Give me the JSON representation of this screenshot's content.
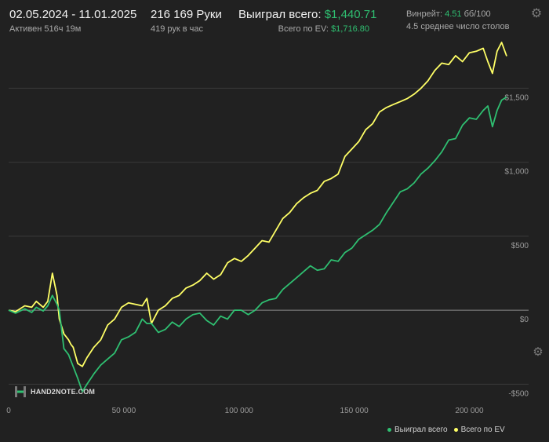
{
  "header": {
    "date_range": "02.05.2024 - 11.01.2025",
    "active": "Активен 516ч 19м",
    "hands": "216 169 Руки",
    "hands_per_hour": "419 рук в час",
    "won_label": "Выиграл всего:",
    "won_value": "$1,440.71",
    "ev_label": "Всего по EV:",
    "ev_value": "$1,716.80",
    "winrate_label": "Винрейт:",
    "winrate_value": "4.51",
    "winrate_unit": "бб/100",
    "tables": "4.5 среднее число столов"
  },
  "icons": {
    "settings": "gear-icon",
    "chart_settings": "gear-icon",
    "logo": "hand2note-logo"
  },
  "logo_text": "HAND2NOTE.COM",
  "colors": {
    "won": "#2fbf71",
    "ev": "#ffff66",
    "background": "#212121",
    "grid": "#3a3a3a",
    "zero": "#8a8a8a"
  },
  "chart_data": {
    "type": "line",
    "xlim": [
      0,
      216169
    ],
    "ylim": [
      -620,
      1900
    ],
    "x_ticks": [
      0,
      50000,
      100000,
      150000,
      200000
    ],
    "x_tick_labels": [
      "0",
      "50 000",
      "100 000",
      "150 000",
      "200 000"
    ],
    "y_ticks": [
      -500,
      0,
      500,
      1000,
      1500
    ],
    "y_tick_labels": [
      "-$500",
      "$0",
      "$500",
      "$1,000",
      "$1,500"
    ],
    "grid": true,
    "legend": "bottom-right",
    "x": [
      0,
      3000,
      7000,
      10000,
      12000,
      15000,
      17000,
      19000,
      21000,
      22000,
      24000,
      26000,
      27000,
      28000,
      30000,
      32000,
      34000,
      37000,
      40000,
      43000,
      46000,
      49000,
      52000,
      55000,
      58000,
      60000,
      62000,
      65000,
      68000,
      71000,
      74000,
      77000,
      80000,
      83000,
      86000,
      89000,
      92000,
      95000,
      98000,
      101000,
      104000,
      107000,
      110000,
      113000,
      116000,
      119000,
      122000,
      125000,
      128000,
      131000,
      134000,
      137000,
      140000,
      143000,
      146000,
      149000,
      152000,
      155000,
      158000,
      161000,
      164000,
      167000,
      170000,
      173000,
      176000,
      179000,
      182000,
      185000,
      188000,
      191000,
      194000,
      197000,
      200000,
      203000,
      206000,
      208000,
      210000,
      212000,
      214000,
      216169
    ],
    "series": [
      {
        "name": "Выиграл всего",
        "values": [
          0,
          -20,
          10,
          -15,
          20,
          -5,
          30,
          100,
          40,
          0,
          -260,
          -300,
          -340,
          -380,
          -460,
          -550,
          -500,
          -430,
          -370,
          -330,
          -290,
          -200,
          -180,
          -150,
          -60,
          -90,
          -90,
          -150,
          -130,
          -80,
          -110,
          -60,
          -30,
          -20,
          -70,
          -100,
          -40,
          -60,
          0,
          0,
          -30,
          0,
          50,
          70,
          80,
          140,
          180,
          220,
          260,
          300,
          270,
          280,
          340,
          330,
          390,
          420,
          480,
          510,
          540,
          580,
          660,
          730,
          800,
          820,
          860,
          920,
          960,
          1010,
          1070,
          1150,
          1160,
          1250,
          1300,
          1290,
          1350,
          1380,
          1240,
          1350,
          1420,
          1440.71
        ]
      },
      {
        "name": "Всего по EV",
        "values": [
          0,
          -10,
          30,
          20,
          60,
          20,
          60,
          250,
          100,
          -60,
          -160,
          -200,
          -230,
          -250,
          -360,
          -380,
          -320,
          -250,
          -200,
          -100,
          -60,
          20,
          50,
          40,
          30,
          80,
          -90,
          0,
          30,
          80,
          100,
          150,
          170,
          200,
          250,
          210,
          240,
          320,
          350,
          330,
          370,
          420,
          470,
          460,
          540,
          620,
          660,
          720,
          760,
          790,
          810,
          870,
          890,
          920,
          1040,
          1090,
          1140,
          1220,
          1260,
          1340,
          1370,
          1390,
          1410,
          1430,
          1460,
          1500,
          1550,
          1620,
          1670,
          1660,
          1720,
          1680,
          1740,
          1750,
          1770,
          1680,
          1600,
          1750,
          1810,
          1716.8
        ]
      }
    ]
  }
}
